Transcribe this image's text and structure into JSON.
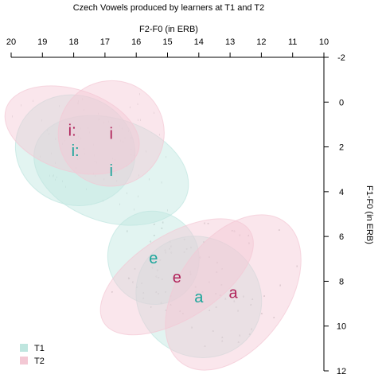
{
  "chart_data": {
    "type": "scatter",
    "title": "Czech Vowels produced by learners at T1 and T2",
    "xlabel": "F2-F0 (in ERB)",
    "ylabel": "F1-F0 (in ERB)",
    "x_axis": {
      "position": "top",
      "reversed": true,
      "range": [
        20,
        10
      ],
      "ticks": [
        "20",
        "19",
        "18",
        "17",
        "16",
        "15",
        "14",
        "13",
        "12",
        "11",
        "10"
      ]
    },
    "y_axis": {
      "position": "right",
      "reversed": true,
      "range": [
        -2,
        12
      ],
      "ticks": [
        "-2",
        "0",
        "2",
        "4",
        "6",
        "8",
        "10",
        "12"
      ]
    },
    "legend": {
      "position": "bottom-left",
      "entries": [
        {
          "label": "T1",
          "color": "#bfe6df"
        },
        {
          "label": "T2",
          "color": "#f3c8d4"
        }
      ]
    },
    "series": [
      {
        "name": "T1",
        "label_color": "#1aa59a",
        "fill": "#bfe6df",
        "vowels": [
          {
            "label": "i:",
            "x": 17.95,
            "y": 2.15,
            "ellipse": {
              "rx": 1.75,
              "ry": 2.7,
              "tilt": -70
            }
          },
          {
            "label": "i",
            "x": 16.8,
            "y": 3.05,
            "ellipse": {
              "rx": 1.65,
              "ry": 3.55,
              "tilt": -72
            }
          },
          {
            "label": "e",
            "x": 15.45,
            "y": 6.95,
            "ellipse": {
              "rx": 1.45,
              "ry": 2.1,
              "tilt": -28
            }
          },
          {
            "label": "a",
            "x": 14.0,
            "y": 8.7,
            "ellipse": {
              "rx": 2.05,
              "ry": 2.65,
              "tilt": 32
            }
          }
        ]
      },
      {
        "name": "T2",
        "label_color": "#b0235a",
        "fill": "#f3c8d4",
        "vowels": [
          {
            "label": "i:",
            "x": 18.05,
            "y": 1.25,
            "ellipse": {
              "rx": 1.3,
              "ry": 3.1,
              "tilt": -72
            }
          },
          {
            "label": "i",
            "x": 16.8,
            "y": 1.4,
            "ellipse": {
              "rx": 1.7,
              "ry": 2.35,
              "tilt": -35
            }
          },
          {
            "label": "e",
            "x": 14.7,
            "y": 7.8,
            "ellipse": {
              "rx": 1.35,
              "ry": 3.85,
              "tilt": 58
            }
          },
          {
            "label": "a",
            "x": 12.9,
            "y": 8.5,
            "ellipse": {
              "rx": 1.75,
              "ry": 3.9,
              "tilt": 36
            }
          }
        ]
      }
    ]
  }
}
